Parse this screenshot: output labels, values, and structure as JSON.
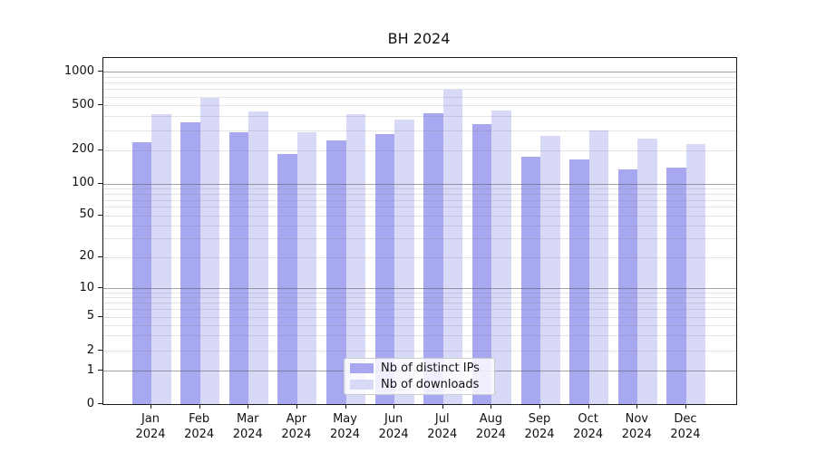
{
  "chart_data": {
    "type": "bar",
    "title": "BH 2024",
    "xlabel": "",
    "ylabel": "",
    "y_scale": "symlog",
    "categories": [
      "Jan 2024",
      "Feb 2024",
      "Mar 2024",
      "Apr 2024",
      "May 2024",
      "Jun 2024",
      "Jul 2024",
      "Aug 2024",
      "Sep 2024",
      "Oct 2024",
      "Nov 2024",
      "Dec 2024"
    ],
    "series": [
      {
        "name": "Nb of distinct IPs",
        "color": "#a8a8f0",
        "values": [
          235,
          355,
          290,
          185,
          245,
          280,
          430,
          340,
          175,
          165,
          135,
          140
        ]
      },
      {
        "name": "Nb of downloads",
        "color": "#d8d8f7",
        "values": [
          415,
          580,
          445,
          290,
          420,
          375,
          690,
          450,
          270,
          300,
          255,
          225
        ]
      }
    ],
    "yticks": [
      0,
      1,
      2,
      5,
      10,
      20,
      50,
      100,
      200,
      500,
      1000
    ],
    "ylim": [
      0,
      1300
    ],
    "grid": true,
    "legend_position": "bottom-center",
    "colors": {
      "major_gridline": "#5a5a5a",
      "minor_gridline": "#bdbdbd",
      "axis": "#1a1a1a",
      "text": "#111111"
    }
  }
}
